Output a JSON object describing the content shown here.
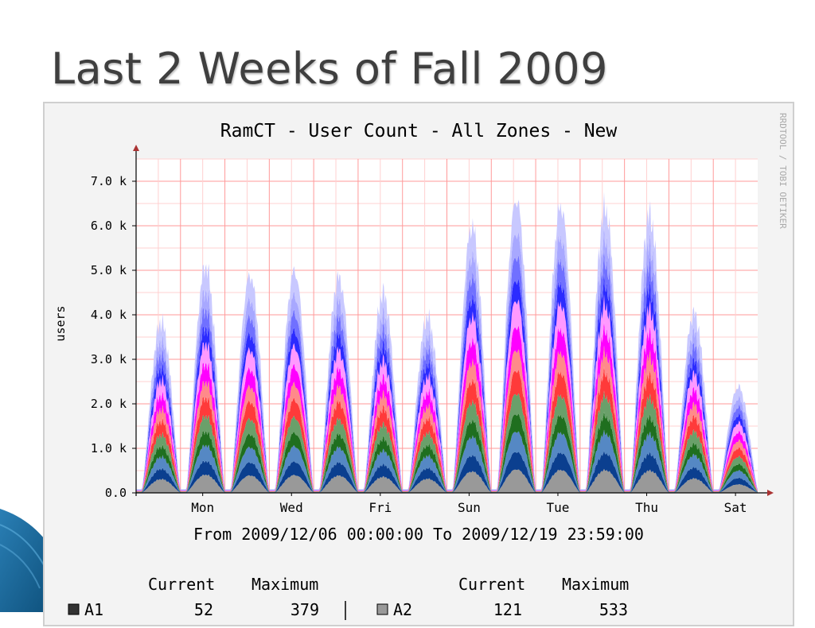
{
  "slide": {
    "title": "Last 2 Weeks of Fall 2009"
  },
  "chart_data": {
    "type": "area",
    "stacked": true,
    "title": "RamCT - User Count - All Zones - New",
    "ylabel": "users",
    "xlabel": "From 2009/12/06 00:00:00 To 2009/12/19 23:59:00",
    "watermark": "RRDTOOL / TOBI OETIKER",
    "ylim": [
      0,
      7500
    ],
    "yticks": [
      {
        "value": 0,
        "label": "0.0"
      },
      {
        "value": 1000,
        "label": "1.0 k"
      },
      {
        "value": 2000,
        "label": "2.0 k"
      },
      {
        "value": 3000,
        "label": "3.0 k"
      },
      {
        "value": 4000,
        "label": "4.0 k"
      },
      {
        "value": 5000,
        "label": "5.0 k"
      },
      {
        "value": 6000,
        "label": "6.0 k"
      },
      {
        "value": 7000,
        "label": "7.0 k"
      }
    ],
    "xlim": [
      0,
      14
    ],
    "xticks": [
      {
        "day": 1.5,
        "label": "Mon"
      },
      {
        "day": 3.5,
        "label": "Wed"
      },
      {
        "day": 5.5,
        "label": "Fri"
      },
      {
        "day": 7.5,
        "label": "Sun"
      },
      {
        "day": 9.5,
        "label": "Tue"
      },
      {
        "day": 11.5,
        "label": "Thu"
      },
      {
        "day": 13.5,
        "label": "Sat"
      }
    ],
    "daily_peaks": [
      3750,
      5000,
      4800,
      4900,
      4750,
      4400,
      3850,
      5900,
      6500,
      6350,
      6300,
      6150,
      3950,
      2300
    ],
    "layer_fractions": [
      0.08,
      0.06,
      0.07,
      0.06,
      0.07,
      0.08,
      0.07,
      0.08,
      0.09,
      0.07,
      0.08,
      0.08,
      0.11
    ],
    "colors": [
      "#999999",
      "#0b3f8f",
      "#5588c4",
      "#1f6f1f",
      "#6aa06a",
      "#ff3a3a",
      "#ff8a8a",
      "#ff00ff",
      "#ff99ff",
      "#2b2bff",
      "#7070ff",
      "#a8a8ff",
      "#c8c8ff"
    ],
    "legend_header": {
      "current": "Current",
      "maximum": "Maximum"
    },
    "legend": [
      {
        "name": "A1",
        "current": "52",
        "maximum": "379",
        "color": "#333333"
      },
      {
        "name": "A2",
        "current": "121",
        "maximum": "533",
        "color": "#999999"
      }
    ]
  }
}
